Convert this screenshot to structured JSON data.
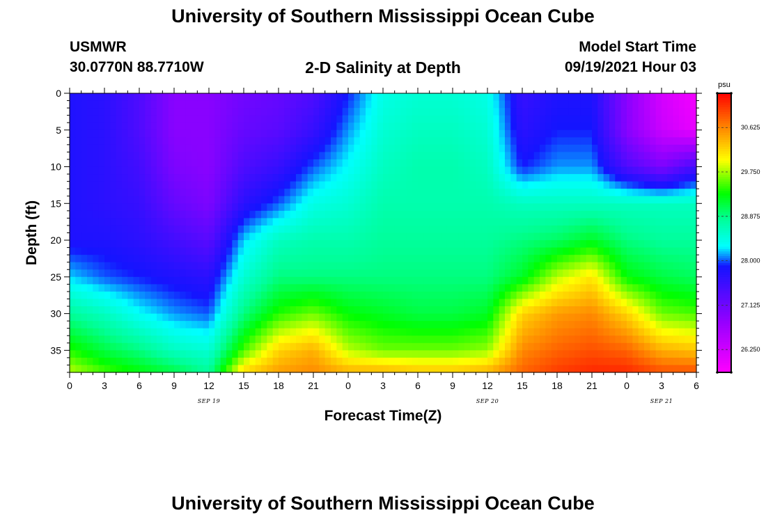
{
  "header": {
    "title": "University of Southern Mississippi Ocean Cube",
    "station": "USMWR",
    "coords": "30.0770N  88.7710W",
    "subtitle": "2-D Salinity at Depth",
    "model_start_label": "Model Start Time",
    "model_start_value": "09/19/2021 Hour 03"
  },
  "footer": {
    "title": "University of Southern Mississippi Ocean Cube"
  },
  "chart_data": {
    "type": "heatmap",
    "title": "2-D Salinity at Depth",
    "xlabel": "Forecast Time(Z)",
    "ylabel": "Depth (ft)",
    "x_hours_range": [
      0,
      54
    ],
    "x_ticks": [
      {
        "h": 0,
        "label": "0"
      },
      {
        "h": 3,
        "label": "3"
      },
      {
        "h": 6,
        "label": "6"
      },
      {
        "h": 9,
        "label": "9"
      },
      {
        "h": 12,
        "label": "12"
      },
      {
        "h": 15,
        "label": "15"
      },
      {
        "h": 18,
        "label": "18"
      },
      {
        "h": 21,
        "label": "21"
      },
      {
        "h": 24,
        "label": "0"
      },
      {
        "h": 27,
        "label": "3"
      },
      {
        "h": 30,
        "label": "6"
      },
      {
        "h": 33,
        "label": "9"
      },
      {
        "h": 36,
        "label": "12"
      },
      {
        "h": 39,
        "label": "15"
      },
      {
        "h": 42,
        "label": "18"
      },
      {
        "h": 45,
        "label": "21"
      },
      {
        "h": 48,
        "label": "0"
      },
      {
        "h": 51,
        "label": "3"
      },
      {
        "h": 54,
        "label": "6"
      }
    ],
    "date_labels": [
      {
        "h": 12,
        "label": "SEP 19"
      },
      {
        "h": 36,
        "label": "SEP 20"
      },
      {
        "h": 51,
        "label": "SEP 21"
      }
    ],
    "ylim": [
      0,
      38
    ],
    "y_ticks": [
      0,
      5,
      10,
      15,
      20,
      25,
      30,
      35
    ],
    "depth_grid_ft": [
      0,
      5,
      10,
      15,
      20,
      25,
      30,
      35,
      38
    ],
    "colorbar": {
      "unit": "psu",
      "range": [
        25.8,
        31.3
      ],
      "ticks": [
        "30.625",
        "29.750",
        "28.875",
        "28.000",
        "27.125",
        "26.250"
      ],
      "tick_values": [
        30.625,
        29.75,
        28.875,
        28.0,
        27.125,
        26.25
      ]
    },
    "salinity_psu_profiles": [
      {
        "h": 0,
        "values": [
          27.8,
          27.8,
          27.8,
          27.8,
          27.8,
          28.2,
          28.8,
          29.4,
          29.8
        ]
      },
      {
        "h": 3,
        "values": [
          27.7,
          27.7,
          27.7,
          27.7,
          27.8,
          28.0,
          28.6,
          29.1,
          29.5
        ]
      },
      {
        "h": 6,
        "values": [
          27.4,
          27.4,
          27.5,
          27.6,
          27.7,
          27.9,
          28.3,
          28.9,
          29.3
        ]
      },
      {
        "h": 9,
        "values": [
          26.9,
          26.9,
          27.0,
          27.2,
          27.5,
          27.8,
          28.1,
          28.6,
          29.1
        ]
      },
      {
        "h": 12,
        "values": [
          26.9,
          26.9,
          26.9,
          27.0,
          27.3,
          27.7,
          28.0,
          28.5,
          28.8
        ]
      },
      {
        "h": 15,
        "values": [
          27.1,
          27.2,
          27.4,
          27.7,
          28.2,
          28.5,
          28.9,
          29.5,
          30.2
        ]
      },
      {
        "h": 18,
        "values": [
          27.2,
          27.3,
          27.6,
          28.0,
          28.6,
          28.9,
          29.4,
          30.2,
          30.5
        ]
      },
      {
        "h": 21,
        "values": [
          27.4,
          27.6,
          28.0,
          28.4,
          28.7,
          28.9,
          29.6,
          30.4,
          30.6
        ]
      },
      {
        "h": 24,
        "values": [
          27.9,
          28.1,
          28.3,
          28.5,
          28.7,
          28.9,
          29.3,
          29.8,
          30.4
        ]
      },
      {
        "h": 27,
        "values": [
          28.4,
          28.5,
          28.6,
          28.7,
          28.8,
          28.9,
          29.2,
          29.6,
          30.4
        ]
      },
      {
        "h": 30,
        "values": [
          28.5,
          28.6,
          28.7,
          28.7,
          28.8,
          28.9,
          29.1,
          29.6,
          30.3
        ]
      },
      {
        "h": 33,
        "values": [
          28.5,
          28.6,
          28.7,
          28.7,
          28.8,
          28.9,
          29.1,
          29.6,
          30.3
        ]
      },
      {
        "h": 36,
        "values": [
          28.4,
          28.5,
          28.6,
          28.7,
          28.8,
          28.9,
          29.2,
          29.7,
          30.4
        ]
      },
      {
        "h": 39,
        "values": [
          27.6,
          27.7,
          27.9,
          28.6,
          28.9,
          29.2,
          30.2,
          30.6,
          30.8
        ]
      },
      {
        "h": 42,
        "values": [
          27.8,
          27.9,
          28.1,
          28.6,
          29.0,
          29.8,
          30.5,
          30.8,
          31.0
        ]
      },
      {
        "h": 45,
        "values": [
          27.8,
          27.9,
          28.1,
          28.6,
          29.2,
          30.1,
          30.6,
          30.9,
          31.1
        ]
      },
      {
        "h": 48,
        "values": [
          26.9,
          26.9,
          27.4,
          28.6,
          28.9,
          29.3,
          30.2,
          30.8,
          31.1
        ]
      },
      {
        "h": 51,
        "values": [
          26.2,
          26.3,
          27.0,
          28.6,
          28.8,
          29.1,
          29.6,
          30.4,
          30.9
        ]
      },
      {
        "h": 54,
        "values": [
          25.9,
          26.0,
          27.5,
          28.6,
          28.8,
          29.0,
          29.5,
          30.3,
          30.9
        ]
      }
    ]
  }
}
